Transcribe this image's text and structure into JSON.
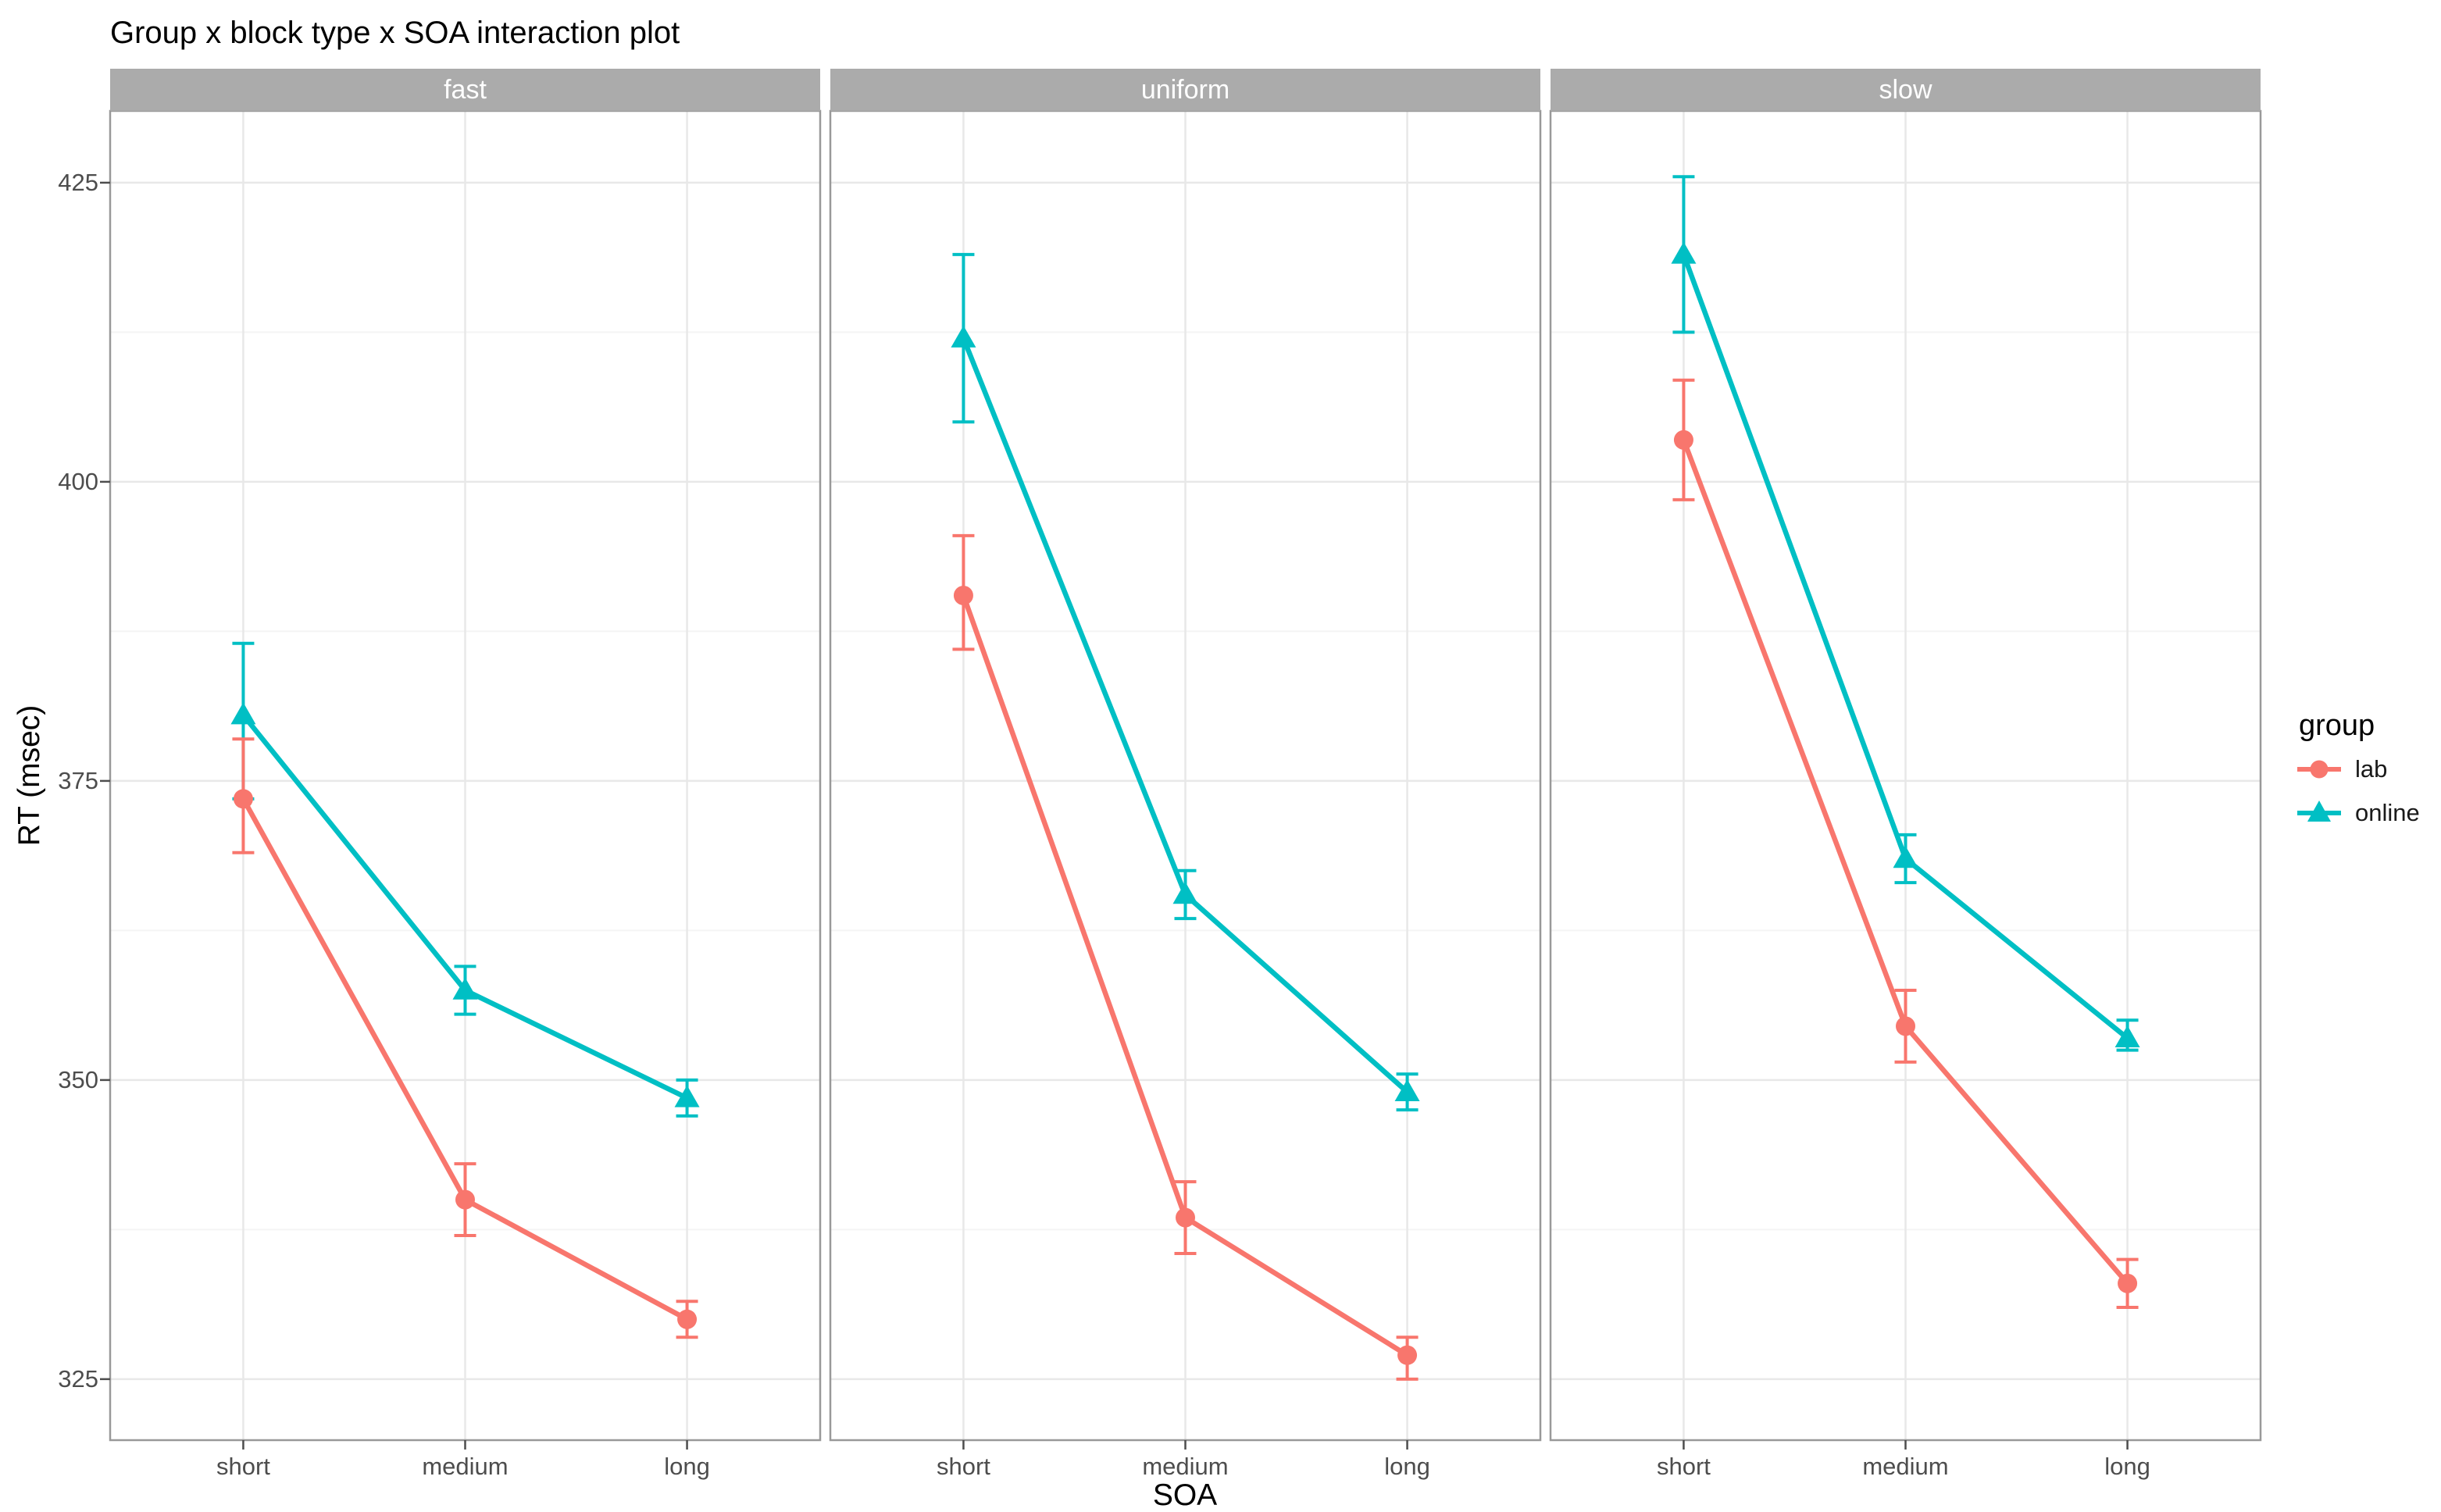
{
  "figure": {
    "title": "Group x block type x SOA interaction plot"
  },
  "axes": {
    "x_title": "SOA",
    "y_title": "RT (msec)"
  },
  "legend": {
    "title": "group",
    "items": [
      {
        "label": "lab",
        "series": "lab"
      },
      {
        "label": "online",
        "series": "online"
      }
    ]
  },
  "colors": {
    "lab": "#F8766D",
    "online": "#00BFC4",
    "strip_bg": "#ABABAB",
    "strip_text": "#FFFFFF",
    "grid_major": "#E8E8E8",
    "grid_minor": "#F4F4F4",
    "panel_border": "#999999",
    "tick_mark": "#4D4D4D",
    "tick_text": "#4D4D4D"
  },
  "chart_data": {
    "type": "line",
    "title": "Group x block type x SOA interaction plot",
    "xlabel": "SOA",
    "ylabel": "RT (msec)",
    "facets": [
      "fast",
      "uniform",
      "slow"
    ],
    "categories": [
      "short",
      "medium",
      "long"
    ],
    "y_ticks": [
      425,
      400,
      375,
      350,
      325
    ],
    "y_minor": [
      412.5,
      387.5,
      362.5,
      337.5
    ],
    "ylim": [
      319.9,
      431.0
    ],
    "grid": {
      "major": true,
      "minor": true
    },
    "legend_position": "right",
    "series_meta": [
      {
        "name": "lab",
        "marker": "circle",
        "color": "#F8766D"
      },
      {
        "name": "online",
        "marker": "triangle",
        "color": "#00BFC4"
      }
    ],
    "data": [
      {
        "facet": "fast",
        "series": [
          {
            "name": "lab",
            "values": [
              373.5,
              340,
              330
            ],
            "ci_low": [
              369,
              337,
              328.5
            ],
            "ci_high": [
              378.5,
              343,
              331.5
            ]
          },
          {
            "name": "online",
            "values": [
              380.5,
              357.5,
              348.5
            ],
            "ci_low": [
              373.5,
              355.5,
              347
            ],
            "ci_high": [
              386.5,
              359.5,
              350
            ]
          }
        ]
      },
      {
        "facet": "uniform",
        "series": [
          {
            "name": "lab",
            "values": [
              390.5,
              338.5,
              327
            ],
            "ci_low": [
              386,
              335.5,
              325
            ],
            "ci_high": [
              395.5,
              341.5,
              328.5
            ]
          },
          {
            "name": "online",
            "values": [
              412,
              365.5,
              349
            ],
            "ci_low": [
              405,
              363.5,
              347.5
            ],
            "ci_high": [
              419,
              367.5,
              350.5
            ]
          }
        ]
      },
      {
        "facet": "slow",
        "series": [
          {
            "name": "lab",
            "values": [
              403.5,
              354.5,
              333
            ],
            "ci_low": [
              398.5,
              351.5,
              331
            ],
            "ci_high": [
              408.5,
              357.5,
              335
            ]
          },
          {
            "name": "online",
            "values": [
              419,
              368.5,
              353.5
            ],
            "ci_low": [
              412.5,
              366.5,
              352.5
            ],
            "ci_high": [
              425.5,
              370.5,
              355
            ]
          }
        ]
      }
    ]
  }
}
